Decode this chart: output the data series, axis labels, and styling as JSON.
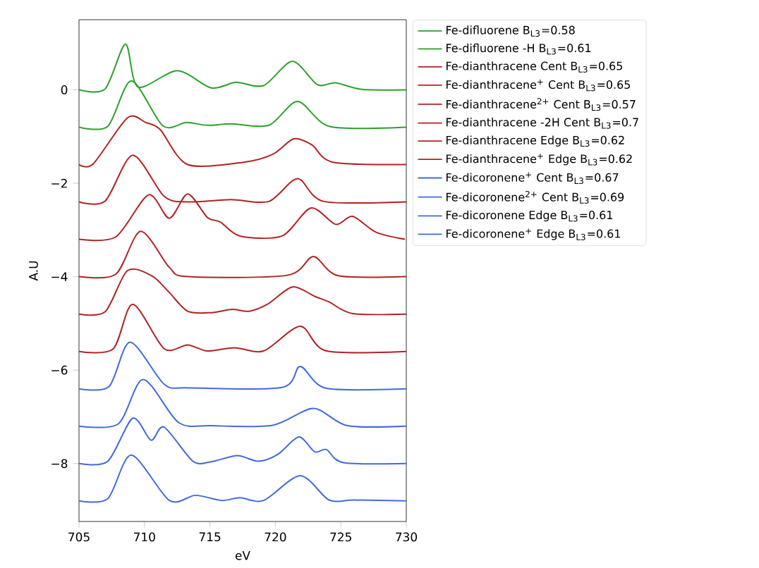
{
  "chart_data": {
    "type": "line",
    "xlabel": "eV",
    "ylabel": "A.U",
    "xlim": [
      705,
      730
    ],
    "ylim": [
      -9.24,
      1.5
    ],
    "xticks": [
      705,
      710,
      715,
      720,
      725,
      730
    ],
    "yticks": [
      {
        "value": -8,
        "label": "−8"
      },
      {
        "value": -6,
        "label": "−6"
      },
      {
        "value": -4,
        "label": "−4"
      },
      {
        "value": -2,
        "label": "−2"
      },
      0
    ],
    "legend": "right",
    "grid": false,
    "marker": "none",
    "line_style": "solid",
    "series": [
      {
        "name": "Fe-difluorene B$_{L3}$=0.58",
        "color": "#2ca02c",
        "x": [
          705,
          707,
          708.55,
          709.5,
          712.5,
          715.1,
          717,
          719.1,
          721.3,
          723.2,
          724.6,
          726.6,
          730
        ],
        "values": [
          0,
          0.02,
          0.98,
          0.06,
          0.41,
          0.04,
          0.16,
          0.09,
          0.61,
          0.11,
          0.15,
          0.01,
          0
        ]
      },
      {
        "name": "Fe-difluorene -H B$_{L3}$=0.61",
        "color": "#2ca02c",
        "x": [
          705,
          707.2,
          709,
          711.4,
          713.2,
          714.8,
          716.6,
          719.5,
          721.7,
          724.2,
          730
        ],
        "values": [
          -0.8,
          -0.78,
          0.19,
          -0.77,
          -0.7,
          -0.76,
          -0.73,
          -0.76,
          -0.25,
          -0.79,
          -0.8
        ]
      },
      {
        "name": "Fe-dianthracene Cent B$_{L3}$=0.65",
        "color": "#b22222",
        "x": [
          705,
          706.1,
          708.7,
          710.1,
          711.2,
          713.3,
          717.6,
          719.8,
          721.4,
          722.8,
          724.4,
          730
        ],
        "values": [
          -1.6,
          -1.58,
          -0.6,
          -0.7,
          -0.85,
          -1.6,
          -1.55,
          -1.38,
          -1.05,
          -1.18,
          -1.55,
          -1.6
        ]
      },
      {
        "name": "Fe-dianthracene$^{+}$ Cent B$_{L3}$=0.65",
        "color": "#b22222",
        "x": [
          705,
          707,
          709.1,
          711.5,
          713.3,
          716.6,
          719.5,
          721.7,
          723.7,
          730
        ],
        "values": [
          -2.4,
          -2.38,
          -1.4,
          -2.28,
          -2.4,
          -2.35,
          -2.39,
          -1.9,
          -2.39,
          -2.4
        ]
      },
      {
        "name": "Fe-dianthracene$^{2+}$ Cent B$_{L3}$=0.57",
        "color": "#b22222",
        "x": [
          705,
          707.8,
          710.3,
          711.9,
          713.3,
          714.8,
          715.8,
          717.3,
          720.5,
          722.7,
          724.6,
          725.9,
          727.7,
          729.9
        ],
        "values": [
          -3.2,
          -3.15,
          -2.25,
          -2.75,
          -2.23,
          -2.73,
          -2.83,
          -3.13,
          -3.13,
          -2.53,
          -2.88,
          -2.71,
          -3.05,
          -3.2
        ]
      },
      {
        "name": "Fe-dianthracene -2H Cent B$_{L3}$=0.7",
        "color": "#b22222",
        "x": [
          705,
          707.8,
          709.7,
          711.9,
          713.3,
          720.9,
          722.9,
          724.8,
          730
        ],
        "values": [
          -4.0,
          -3.95,
          -3.03,
          -3.8,
          -4.0,
          -3.97,
          -3.57,
          -3.98,
          -4.0
        ]
      },
      {
        "name": "Fe-dianthracene Edge B$_{L3}$=0.62",
        "color": "#b22222",
        "x": [
          705,
          707,
          708.7,
          710.6,
          711.9,
          713.3,
          715.1,
          716.7,
          718,
          719.4,
          721.3,
          723,
          724.1,
          725.9,
          730
        ],
        "values": [
          -4.8,
          -4.75,
          -3.87,
          -3.99,
          -4.34,
          -4.74,
          -4.77,
          -4.7,
          -4.74,
          -4.59,
          -4.22,
          -4.42,
          -4.54,
          -4.79,
          -4.8
        ]
      },
      {
        "name": "Fe-dianthracene$^{+}$ Edge B$_{L3}$=0.62",
        "color": "#b22222",
        "x": [
          705,
          707.6,
          709.1,
          711.5,
          713.3,
          714.8,
          716.9,
          719.1,
          721.9,
          723.9,
          730
        ],
        "values": [
          -5.6,
          -5.55,
          -4.59,
          -5.54,
          -5.46,
          -5.59,
          -5.52,
          -5.59,
          -5.06,
          -5.59,
          -5.6
        ]
      },
      {
        "name": "Fe-dicoronene$^{+}$ Cent B$_{L3}$=0.67",
        "color": "#4169e1",
        "x": [
          705,
          707.3,
          708.9,
          711.5,
          713.3,
          720.5,
          721.9,
          723.9,
          730
        ],
        "values": [
          -6.4,
          -6.35,
          -5.4,
          -6.3,
          -6.38,
          -6.37,
          -5.92,
          -6.39,
          -6.4
        ]
      },
      {
        "name": "Fe-dicoronene$^{2+}$ Cent B$_{L3}$=0.69",
        "color": "#4169e1",
        "x": [
          705,
          708,
          709.9,
          712.6,
          715.1,
          719.8,
          722.9,
          725.5,
          730
        ],
        "values": [
          -7.2,
          -7.15,
          -6.2,
          -7.12,
          -7.19,
          -7.18,
          -6.82,
          -7.19,
          -7.2
        ]
      },
      {
        "name": "Fe-dicoronene Edge B$_{L3}$=0.61",
        "color": "#4169e1",
        "x": [
          705,
          707.2,
          709.1,
          710.5,
          711.5,
          713.7,
          715.1,
          717.1,
          718.7,
          720.2,
          721.8,
          723,
          723.9,
          725.2,
          730
        ],
        "values": [
          -8.0,
          -7.95,
          -7.03,
          -7.5,
          -7.22,
          -7.95,
          -7.96,
          -7.83,
          -7.95,
          -7.8,
          -7.43,
          -7.75,
          -7.7,
          -7.98,
          -8.0
        ]
      },
      {
        "name": "Fe-dicoronene$^{+}$ Edge B$_{L3}$=0.61",
        "color": "#4169e1",
        "x": [
          705,
          707.2,
          709,
          711.9,
          713.9,
          715.9,
          717.3,
          719.1,
          721.9,
          724.1,
          726,
          730
        ],
        "values": [
          -8.8,
          -8.75,
          -7.82,
          -8.79,
          -8.68,
          -8.79,
          -8.73,
          -8.79,
          -8.26,
          -8.78,
          -8.78,
          -8.8
        ]
      }
    ]
  }
}
